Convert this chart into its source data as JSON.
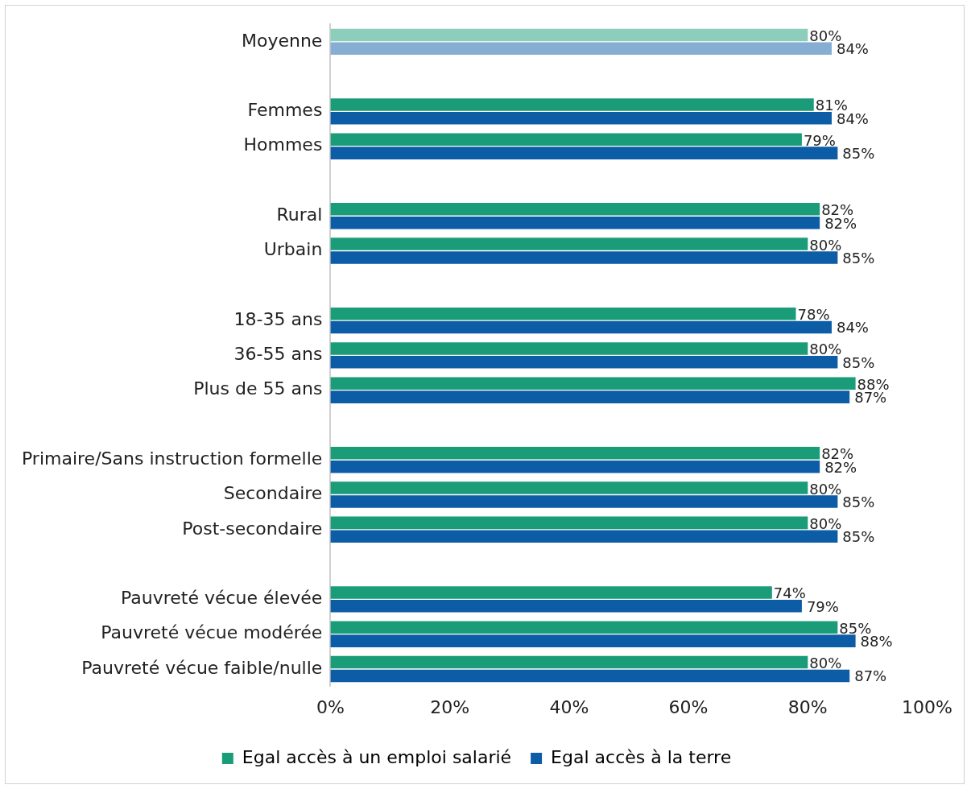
{
  "chart_data": {
    "type": "bar",
    "orientation": "horizontal",
    "categories": [
      "Moyenne",
      null,
      "Femmes",
      "Hommes",
      null,
      "Rural",
      "Urbain",
      null,
      "18-35 ans",
      "36-55 ans",
      "Plus de 55 ans",
      null,
      "Primaire/Sans instruction formelle",
      "Secondaire",
      "Post-secondaire",
      null,
      "Pauvreté vécue élevée",
      "Pauvreté vécue modérée",
      "Pauvreté vécue faible/nulle"
    ],
    "series": [
      {
        "name": "Egal accès à un emploi salarié",
        "color": "#1a9c78",
        "colors": [
          "#8ccdbb",
          null,
          "#1a9c78",
          "#1a9c78",
          null,
          "#1a9c78",
          "#1a9c78",
          null,
          "#1a9c78",
          "#1a9c78",
          "#1a9c78",
          null,
          "#1a9c78",
          "#1a9c78",
          "#1a9c78",
          null,
          "#1a9c78",
          "#1a9c78",
          "#1a9c78"
        ],
        "values": [
          80,
          null,
          81,
          79,
          null,
          82,
          80,
          null,
          78,
          80,
          88,
          null,
          82,
          80,
          80,
          null,
          74,
          85,
          80
        ],
        "value_labels": [
          "80%",
          null,
          "81%",
          "79%",
          null,
          "82%",
          "80%",
          null,
          "78%",
          "80%",
          "88%",
          null,
          "82%",
          "80%",
          "80%",
          null,
          "74%",
          "85%",
          "80%"
        ]
      },
      {
        "name": "Egal accès à la terre",
        "color": "#0c5ca6",
        "colors": [
          "#86add2",
          null,
          "#0c5ca6",
          "#0c5ca6",
          null,
          "#0c5ca6",
          "#0c5ca6",
          null,
          "#0c5ca6",
          "#0c5ca6",
          "#0c5ca6",
          null,
          "#0c5ca6",
          "#0c5ca6",
          "#0c5ca6",
          null,
          "#0c5ca6",
          "#0c5ca6",
          "#0c5ca6"
        ],
        "values": [
          84,
          null,
          84,
          85,
          null,
          82,
          85,
          null,
          84,
          85,
          87,
          null,
          82,
          85,
          85,
          null,
          79,
          88,
          87
        ],
        "value_labels": [
          "84%",
          null,
          "84%",
          "85%",
          null,
          "82%",
          "85%",
          null,
          "84%",
          "85%",
          "87%",
          null,
          "82%",
          "85%",
          "85%",
          null,
          "79%",
          "88%",
          "87%"
        ]
      }
    ],
    "xlim": [
      0,
      100
    ],
    "xticks": [
      {
        "value": 0,
        "label": "0%"
      },
      {
        "value": 20,
        "label": "20%"
      },
      {
        "value": 40,
        "label": "40%"
      },
      {
        "value": 60,
        "label": "60%"
      },
      {
        "value": 80,
        "label": "80%"
      },
      {
        "value": 100,
        "label": "100%"
      }
    ],
    "grid": false,
    "legend": "bottom"
  }
}
